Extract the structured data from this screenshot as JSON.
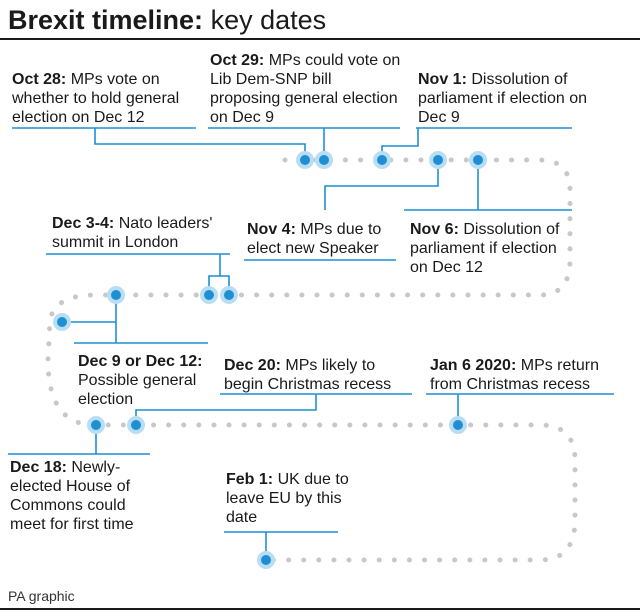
{
  "title": {
    "bold": "Brexit timeline:",
    "light": "key dates"
  },
  "credit": "PA graphic",
  "colors": {
    "accent": "#1e8fd3",
    "halo": "#b9def3",
    "dots": "#c8c8c8",
    "text": "#1a1a1a"
  },
  "events": [
    {
      "id": "oct28",
      "date": "Oct 28:",
      "text": "MPs vote on whether to hold general election on Dec 12"
    },
    {
      "id": "oct29",
      "date": "Oct 29:",
      "text": "MPs could vote on Lib Dem-SNP bill proposing general election on Dec 9"
    },
    {
      "id": "nov1",
      "date": "Nov 1:",
      "text": "Dissolution of parliament if election on Dec 9"
    },
    {
      "id": "nov4",
      "date": "Nov 4:",
      "text": "MPs due to elect new Speaker"
    },
    {
      "id": "nov6",
      "date": "Nov 6:",
      "text": "Dissolution of parliament if election on Dec 12"
    },
    {
      "id": "dec34",
      "date": "Dec 3-4:",
      "text": "Nato leaders' summit in London"
    },
    {
      "id": "dec912",
      "date": "Dec 9 or Dec 12:",
      "text": "Possible general election"
    },
    {
      "id": "dec20",
      "date": "Dec 20:",
      "text": "MPs likely to begin Christmas recess"
    },
    {
      "id": "jan6",
      "date": "Jan 6 2020:",
      "text": "MPs return from Christmas recess"
    },
    {
      "id": "dec18",
      "date": "Dec 18:",
      "text": "Newly-elected House of Commons could meet for first time"
    },
    {
      "id": "feb1",
      "date": "Feb 1:",
      "text": "UK due to leave EU by this date"
    }
  ]
}
